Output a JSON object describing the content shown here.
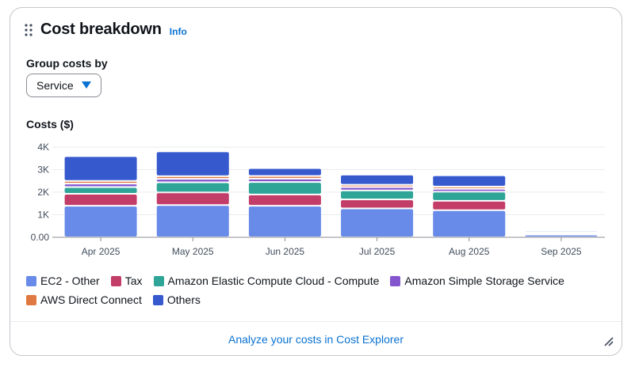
{
  "widget": {
    "title": "Cost breakdown",
    "info_link": "Info",
    "group_by_label": "Group costs by",
    "group_by_value": "Service",
    "costs_label": "Costs ($)",
    "footer_link": "Analyze your costs in Cost Explorer"
  },
  "colors": {
    "link": "#0972d3",
    "ec2_other": "#688ae8",
    "tax": "#c33d69",
    "ec2_compute": "#2ea597",
    "s3": "#8456ce",
    "direct_connect": "#e07941",
    "others": "#3759ce"
  },
  "chart_data": {
    "type": "bar",
    "stacked": true,
    "categories": [
      "Apr 2025",
      "May 2025",
      "Jun 2025",
      "Jul 2025",
      "Aug 2025",
      "Sep 2025"
    ],
    "y_ticks": [
      "4K",
      "3K",
      "2K",
      "1K",
      "0.00"
    ],
    "ylim": [
      0,
      4000
    ],
    "grid": true,
    "legend_position": "bottom",
    "series": [
      {
        "name": "EC2 - Other",
        "color": "#688ae8",
        "values": [
          1400,
          1430,
          1400,
          1280,
          1200,
          120
        ]
      },
      {
        "name": "Tax",
        "color": "#c33d69",
        "values": [
          530,
          560,
          500,
          400,
          420,
          30
        ]
      },
      {
        "name": "Amazon Elastic Compute Cloud - Compute",
        "color": "#2ea597",
        "values": [
          300,
          450,
          550,
          400,
          400,
          40
        ]
      },
      {
        "name": "Amazon Simple Storage Service",
        "color": "#8456ce",
        "values": [
          150,
          150,
          150,
          150,
          130,
          15
        ]
      },
      {
        "name": "AWS Direct Connect",
        "color": "#e07941",
        "values": [
          120,
          120,
          120,
          100,
          100,
          10
        ]
      },
      {
        "name": "Others",
        "color": "#3759ce",
        "values": [
          1100,
          1100,
          350,
          450,
          500,
          75
        ]
      }
    ]
  }
}
